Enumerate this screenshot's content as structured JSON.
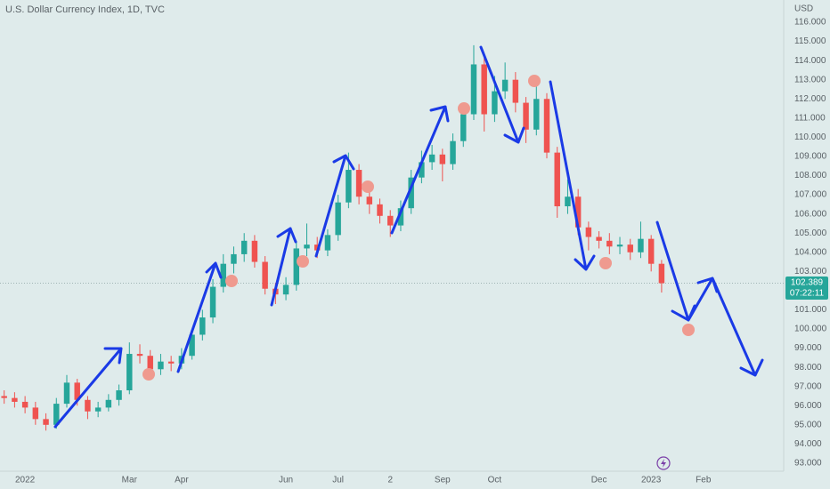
{
  "chart_data": {
    "type": "candlestick",
    "title": "U.S. Dollar Currency Index, 1D, TVC",
    "currency": "USD",
    "countdown": "07:22:11",
    "up_color": "#26a69a",
    "down_color": "#ef5350",
    "grid": false,
    "xlim": [
      -0.48,
      14.54
    ],
    "ylim": [
      92.58,
      117.16
    ],
    "xticks": [
      {
        "value": 0,
        "label": "2022"
      },
      {
        "value": 2,
        "label": "Mar"
      },
      {
        "value": 3,
        "label": "Apr"
      },
      {
        "value": 5,
        "label": "Jun"
      },
      {
        "value": 6,
        "label": "Jul"
      },
      {
        "value": 7,
        "label": "2"
      },
      {
        "value": 8,
        "label": "Sep"
      },
      {
        "value": 9,
        "label": "Oct"
      },
      {
        "value": 11,
        "label": "Dec"
      },
      {
        "value": 12,
        "label": "2023"
      },
      {
        "value": 13,
        "label": "Feb"
      }
    ],
    "yticks": [
      {
        "value": 93,
        "label": "93.000"
      },
      {
        "value": 94,
        "label": "94.000"
      },
      {
        "value": 95,
        "label": "95.000"
      },
      {
        "value": 96,
        "label": "96.000"
      },
      {
        "value": 97,
        "label": "97.000"
      },
      {
        "value": 98,
        "label": "98.000"
      },
      {
        "value": 99,
        "label": "99.000"
      },
      {
        "value": 100,
        "label": "100.000"
      },
      {
        "value": 101,
        "label": "101.000"
      },
      {
        "value": 103,
        "label": "103.000"
      },
      {
        "value": 104,
        "label": "104.000"
      },
      {
        "value": 105,
        "label": "105.000"
      },
      {
        "value": 106,
        "label": "106.000"
      },
      {
        "value": 107,
        "label": "107.000"
      },
      {
        "value": 108,
        "label": "108.000"
      },
      {
        "value": 109,
        "label": "109.000"
      },
      {
        "value": 110,
        "label": "110.000"
      },
      {
        "value": 111,
        "label": "111.000"
      },
      {
        "value": 112,
        "label": "112.000"
      },
      {
        "value": 113,
        "label": "113.000"
      },
      {
        "value": 114,
        "label": "114.000"
      },
      {
        "value": 115,
        "label": "115.000"
      },
      {
        "value": 116,
        "label": "116.000"
      }
    ],
    "x": [
      -0.4,
      -0.2,
      0,
      0.2,
      0.4,
      0.6,
      0.8,
      1,
      1.2,
      1.4,
      1.6,
      1.8,
      2,
      2.2,
      2.4,
      2.6,
      2.8,
      3,
      3.2,
      3.4,
      3.6,
      3.8,
      4,
      4.2,
      4.4,
      4.6,
      4.8,
      5,
      5.2,
      5.4,
      5.6,
      5.8,
      6,
      6.2,
      6.4,
      6.6,
      6.8,
      7,
      7.2,
      7.4,
      7.6,
      7.8,
      8,
      8.2,
      8.4,
      8.6,
      8.8,
      9,
      9.2,
      9.4,
      9.6,
      9.8,
      10,
      10.2,
      10.4,
      10.6,
      10.8,
      11,
      11.2,
      11.4,
      11.6,
      11.8,
      12,
      12.2
    ],
    "open": [
      96.5,
      96.4,
      96.2,
      95.9,
      95.3,
      95.0,
      96.1,
      97.2,
      96.3,
      95.7,
      95.9,
      96.3,
      96.8,
      98.7,
      98.6,
      97.9,
      98.3,
      98.2,
      98.6,
      99.7,
      100.6,
      102.2,
      103.4,
      103.9,
      104.6,
      103.5,
      102.1,
      101.8,
      102.3,
      104.2,
      104.4,
      104.1,
      104.9,
      106.6,
      108.3,
      106.9,
      106.5,
      105.9,
      105.4,
      106.3,
      107.9,
      108.7,
      109.1,
      108.6,
      109.8,
      111.2,
      113.8,
      111.2,
      112.4,
      113.0,
      111.8,
      110.4,
      112.0,
      109.2,
      106.4,
      106.9,
      105.3,
      104.8,
      104.6,
      104.3,
      104.4,
      104.0,
      104.7,
      103.4
    ],
    "high": [
      96.8,
      96.7,
      96.5,
      96.2,
      95.6,
      96.4,
      97.6,
      97.4,
      96.5,
      96.2,
      96.6,
      97.1,
      99.3,
      99.2,
      98.9,
      98.7,
      98.6,
      99.0,
      100.0,
      101.0,
      102.6,
      103.9,
      104.3,
      105.0,
      104.9,
      103.8,
      102.4,
      102.7,
      104.6,
      105.5,
      104.8,
      105.2,
      107.0,
      109.2,
      108.6,
      107.3,
      106.8,
      106.2,
      106.7,
      108.3,
      109.3,
      109.6,
      109.4,
      110.2,
      111.6,
      114.8,
      114.2,
      113.2,
      113.9,
      113.4,
      112.1,
      113.2,
      112.3,
      109.5,
      107.8,
      107.3,
      105.6,
      105.1,
      105.0,
      104.8,
      104.7,
      105.6,
      104.9,
      103.6
    ],
    "low": [
      96.1,
      95.9,
      95.6,
      95.0,
      94.7,
      94.8,
      95.9,
      96.0,
      95.3,
      95.4,
      95.7,
      96.0,
      96.6,
      98.2,
      97.5,
      97.6,
      97.8,
      97.9,
      98.4,
      99.4,
      100.3,
      101.9,
      102.9,
      103.5,
      103.2,
      101.8,
      101.3,
      101.5,
      102.0,
      103.8,
      103.7,
      103.8,
      104.6,
      106.3,
      106.5,
      106.0,
      105.5,
      104.8,
      105.1,
      106.0,
      107.6,
      108.3,
      107.7,
      108.3,
      109.5,
      110.9,
      110.3,
      110.8,
      112.0,
      111.3,
      109.7,
      110.1,
      108.9,
      105.8,
      106.0,
      104.9,
      104.1,
      104.2,
      103.9,
      103.9,
      103.6,
      103.7,
      103.0,
      101.9
    ],
    "close": [
      96.4,
      96.2,
      95.9,
      95.3,
      95.0,
      96.1,
      97.2,
      96.3,
      95.7,
      95.9,
      96.3,
      96.8,
      98.7,
      98.6,
      97.9,
      98.3,
      98.2,
      98.6,
      99.7,
      100.6,
      102.2,
      103.4,
      103.9,
      104.6,
      103.5,
      102.1,
      101.8,
      102.3,
      104.2,
      104.4,
      104.1,
      104.9,
      106.6,
      108.3,
      106.9,
      106.5,
      105.9,
      105.4,
      106.3,
      107.9,
      108.7,
      109.1,
      108.6,
      109.8,
      111.2,
      113.8,
      111.2,
      112.4,
      113.0,
      111.8,
      110.4,
      112.0,
      109.2,
      106.4,
      106.9,
      105.3,
      104.8,
      104.6,
      104.3,
      104.4,
      104.0,
      104.7,
      103.4,
      102.389
    ]
  }
}
